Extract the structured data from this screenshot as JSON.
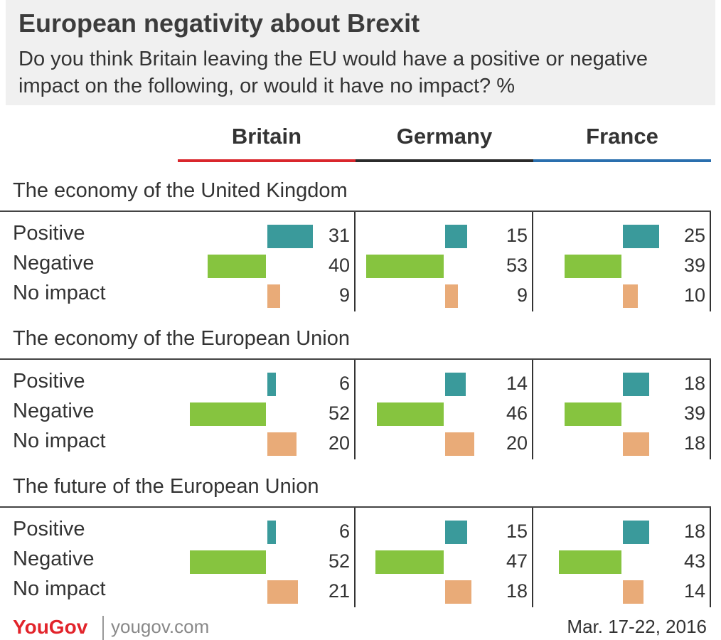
{
  "title": "European negativity about Brexit",
  "subtitle": "Do you think Britain leaving the EU would have a positive or negative impact on the following, or would it have no impact? %",
  "columns": [
    {
      "name": "Britain",
      "color": "#d9262c"
    },
    {
      "name": "Germany",
      "color": "#2b2b2b"
    },
    {
      "name": "France",
      "color": "#2a6fae"
    }
  ],
  "response_colors": {
    "Positive": "#3a9a9b",
    "Negative": "#86c43f",
    "No impact": "#e9ab78"
  },
  "footer": {
    "logo": "YouGov",
    "url": "yougov.com",
    "date": "Mar. 17-22, 2016"
  },
  "chart_data": {
    "type": "bar",
    "responses": [
      "Positive",
      "Negative",
      "No impact"
    ],
    "sections": [
      {
        "title": "The economy of the United Kingdom",
        "values": {
          "Britain": [
            31,
            40,
            9
          ],
          "Germany": [
            15,
            53,
            9
          ],
          "France": [
            25,
            39,
            10
          ]
        }
      },
      {
        "title": "The economy of the European Union",
        "values": {
          "Britain": [
            6,
            52,
            20
          ],
          "Germany": [
            14,
            46,
            20
          ],
          "France": [
            18,
            39,
            18
          ]
        }
      },
      {
        "title": "The future of the European Union",
        "values": {
          "Britain": [
            6,
            52,
            21
          ],
          "Germany": [
            15,
            47,
            18
          ],
          "France": [
            18,
            43,
            14
          ]
        }
      }
    ]
  }
}
